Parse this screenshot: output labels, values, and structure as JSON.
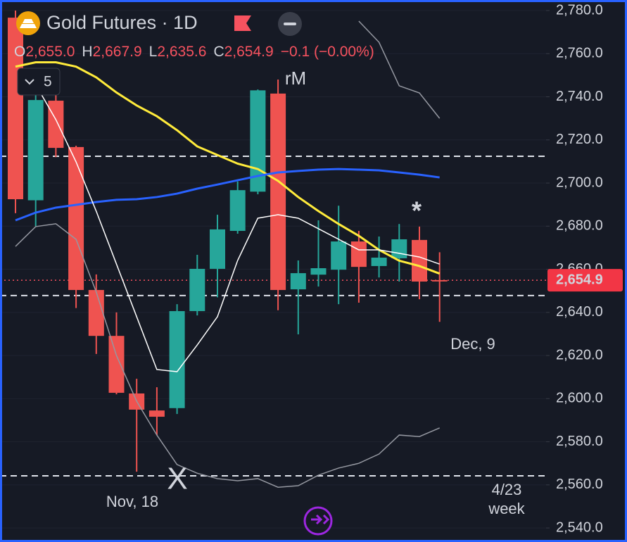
{
  "header": {
    "title": "Gold Futures · 1D",
    "ohlc": [
      {
        "label": "O",
        "value": "2,655.0"
      },
      {
        "label": "H",
        "value": "2,667.9"
      },
      {
        "label": "L",
        "value": "2,635.6"
      },
      {
        "label": "C",
        "value": "2,654.9"
      }
    ],
    "change": "−0.1 (−0.00%)",
    "indicators_count": "5"
  },
  "chart_data": {
    "type": "candlestick",
    "categories": [
      null,
      null,
      null,
      null,
      null,
      null,
      null,
      null,
      null,
      null,
      null,
      null,
      null,
      null,
      null,
      null,
      null,
      null,
      null,
      null,
      null,
      null
    ],
    "open": [
      2776.7,
      2692.0,
      2738.2,
      2716.7,
      2650.4,
      2629.1,
      2602.4,
      2594.5,
      2595.6,
      2640.6,
      2660.2,
      2677.8,
      2696.0,
      2741.5,
      2650.7,
      2657.5,
      2659.8,
      2672.9,
      2661.5,
      2665.1,
      2673.6,
      2655.0
    ],
    "high": [
      2780.0,
      2744.0,
      2743.0,
      2717.3,
      2657.6,
      2640.0,
      2609.2,
      2605.3,
      2643.8,
      2666.7,
      2685.3,
      2700.7,
      2743.4,
      2748.0,
      2664.1,
      2682.7,
      2689.5,
      2677.8,
      2675.2,
      2681.0,
      2679.8,
      2667.9
    ],
    "low": [
      2686.0,
      2680.0,
      2712.0,
      2642.0,
      2620.7,
      2602.0,
      2566.1,
      2583.0,
      2592.9,
      2638.6,
      2647.0,
      2676.5,
      2694.8,
      2641.0,
      2629.8,
      2652.0,
      2643.8,
      2644.5,
      2656.2,
      2654.3,
      2646.1,
      2635.6
    ],
    "close": [
      2692.5,
      2738.5,
      2716.3,
      2650.4,
      2629.1,
      2602.7,
      2594.9,
      2591.6,
      2640.6,
      2660.2,
      2678.5,
      2696.7,
      2743.0,
      2650.4,
      2658.2,
      2660.5,
      2672.9,
      2661.1,
      2665.4,
      2673.9,
      2654.3,
      2654.9
    ],
    "up_color": "#26a69a",
    "down_color": "#ef5350",
    "lines": [
      {
        "color": "#ffeb3b",
        "width": 3,
        "values": [
          2754.0,
          2756.0,
          2756.0,
          2754.0,
          2749.0,
          2742.0,
          2736.0,
          2731.0,
          2724.5,
          2717.0,
          2713.0,
          2709.0,
          2706.5,
          2701.0,
          2693.5,
          2687.0,
          2681.0,
          2675.5,
          2669.0,
          2664.0,
          2661.5,
          2658.0
        ]
      },
      {
        "color": "#2962ff",
        "width": 3,
        "values": [
          2682.7,
          2686.3,
          2688.6,
          2689.9,
          2691.2,
          2692.2,
          2692.5,
          2693.5,
          2695.1,
          2697.4,
          2699.3,
          2701.3,
          2703.3,
          2704.9,
          2705.6,
          2706.2,
          2706.5,
          2706.2,
          2705.9,
          2704.9,
          2703.9,
          2702.6
        ]
      },
      {
        "color": "#ffffff",
        "width": 1.5,
        "values": [
          null,
          2745.7,
          2729.4,
          2709.8,
          2686.9,
          2662.4,
          2638.0,
          2613.5,
          2612.5,
          2624.9,
          2638.0,
          2664.1,
          2683.7,
          2685.3,
          2683.7,
          2678.8,
          2673.9,
          2669.0,
          2669.0,
          2667.4,
          2665.7,
          2662.4
        ]
      },
      {
        "color": "#9598a1",
        "width": 1.5,
        "values": [
          null,
          null,
          null,
          null,
          null,
          null,
          null,
          null,
          null,
          null,
          null,
          null,
          null,
          null,
          null,
          null,
          null,
          2775.1,
          2765.3,
          2745.1,
          2741.8,
          2730.0
        ]
      },
      {
        "color": "#9598a1",
        "width": 1.5,
        "values": [
          2670.6,
          2679.8,
          2681.1,
          2673.9,
          2649.4,
          2620.0,
          2598.8,
          2583.1,
          2569.4,
          2565.4,
          2562.9,
          2561.9,
          2562.9,
          2558.9,
          2559.6,
          2564.5,
          2567.8,
          2570.0,
          2574.3,
          2583.1,
          2582.4,
          2586.4
        ]
      }
    ],
    "levels": [
      2712.4,
      2647.8,
      2564.2
    ],
    "last_price": {
      "value": 2654.9,
      "label": "2,654.9"
    },
    "annotations": [
      "rM",
      "*",
      "Dec, 9",
      "X",
      "Nov, 18",
      "4/23",
      "week"
    ],
    "ylim": [
      2533.5,
      2784.9
    ],
    "yticks": [
      {
        "value": 2540,
        "label": "2,540.0"
      },
      {
        "value": 2560,
        "label": "2,560.0"
      },
      {
        "value": 2580,
        "label": "2,580.0"
      },
      {
        "value": 2600,
        "label": "2,600.0"
      },
      {
        "value": 2620,
        "label": "2,620.0"
      },
      {
        "value": 2640,
        "label": "2,640.0"
      },
      {
        "value": 2660,
        "label": "2,660.0"
      },
      {
        "value": 2680,
        "label": "2,680.0"
      },
      {
        "value": 2700,
        "label": "2,700.0"
      },
      {
        "value": 2720,
        "label": "2,720.0"
      },
      {
        "value": 2740,
        "label": "2,740.0"
      },
      {
        "value": 2760,
        "label": "2,760.0"
      },
      {
        "value": 2780,
        "label": "2,780.0"
      }
    ],
    "grid": true
  }
}
